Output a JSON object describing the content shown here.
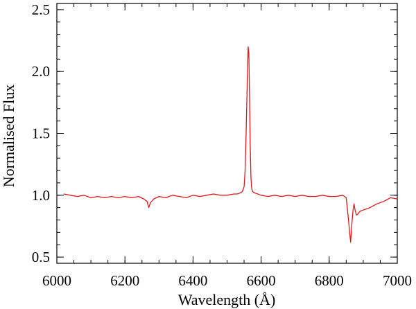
{
  "chart_data": {
    "type": "line",
    "title": "",
    "xlabel": "Wavelength (Å)",
    "ylabel": "Normalised Flux",
    "xlim": [
      6000,
      7000
    ],
    "ylim": [
      0.45,
      2.55
    ],
    "xticks": [
      6000,
      6200,
      6400,
      6600,
      6800,
      7000
    ],
    "xtick_labels": [
      "6000",
      "6200",
      "6400",
      "6600",
      "6800",
      "7000"
    ],
    "yticks": [
      0.5,
      1.0,
      1.5,
      2.0,
      2.5
    ],
    "ytick_labels": [
      "0.5",
      "1.0",
      "1.5",
      "2.0",
      "2.5"
    ],
    "grid": false,
    "series": [
      {
        "color": "#e0161b",
        "x": [
          6020,
          6040,
          6060,
          6080,
          6100,
          6120,
          6140,
          6160,
          6180,
          6200,
          6220,
          6240,
          6255,
          6265,
          6270,
          6275,
          6285,
          6300,
          6320,
          6340,
          6360,
          6380,
          6400,
          6420,
          6440,
          6460,
          6480,
          6500,
          6520,
          6530,
          6540,
          6545,
          6550,
          6553,
          6556,
          6559,
          6562,
          6564,
          6566,
          6568,
          6570,
          6572,
          6575,
          6580,
          6590,
          6600,
          6620,
          6640,
          6660,
          6680,
          6700,
          6720,
          6740,
          6760,
          6780,
          6800,
          6820,
          6840,
          6850,
          6855,
          6860,
          6863,
          6866,
          6870,
          6873,
          6876,
          6880,
          6885,
          6890,
          6900,
          6920,
          6940,
          6960,
          6980,
          7000
        ],
        "y": [
          1.01,
          1.0,
          0.99,
          1.0,
          0.98,
          0.99,
          0.98,
          0.99,
          0.98,
          0.99,
          0.98,
          0.99,
          0.97,
          0.95,
          0.9,
          0.94,
          0.97,
          0.99,
          0.98,
          1.0,
          0.99,
          0.98,
          1.0,
          0.99,
          1.0,
          1.01,
          1.0,
          1.0,
          1.01,
          1.01,
          1.02,
          1.03,
          1.07,
          1.2,
          1.5,
          1.9,
          2.2,
          2.15,
          1.8,
          1.4,
          1.15,
          1.06,
          1.03,
          1.02,
          1.01,
          1.0,
          0.99,
          1.0,
          0.99,
          1.0,
          0.99,
          1.0,
          0.99,
          0.99,
          1.0,
          0.99,
          0.99,
          1.0,
          0.98,
          0.85,
          0.7,
          0.62,
          0.75,
          0.88,
          0.93,
          0.88,
          0.84,
          0.85,
          0.87,
          0.88,
          0.9,
          0.93,
          0.95,
          0.98,
          0.97
        ]
      }
    ]
  }
}
